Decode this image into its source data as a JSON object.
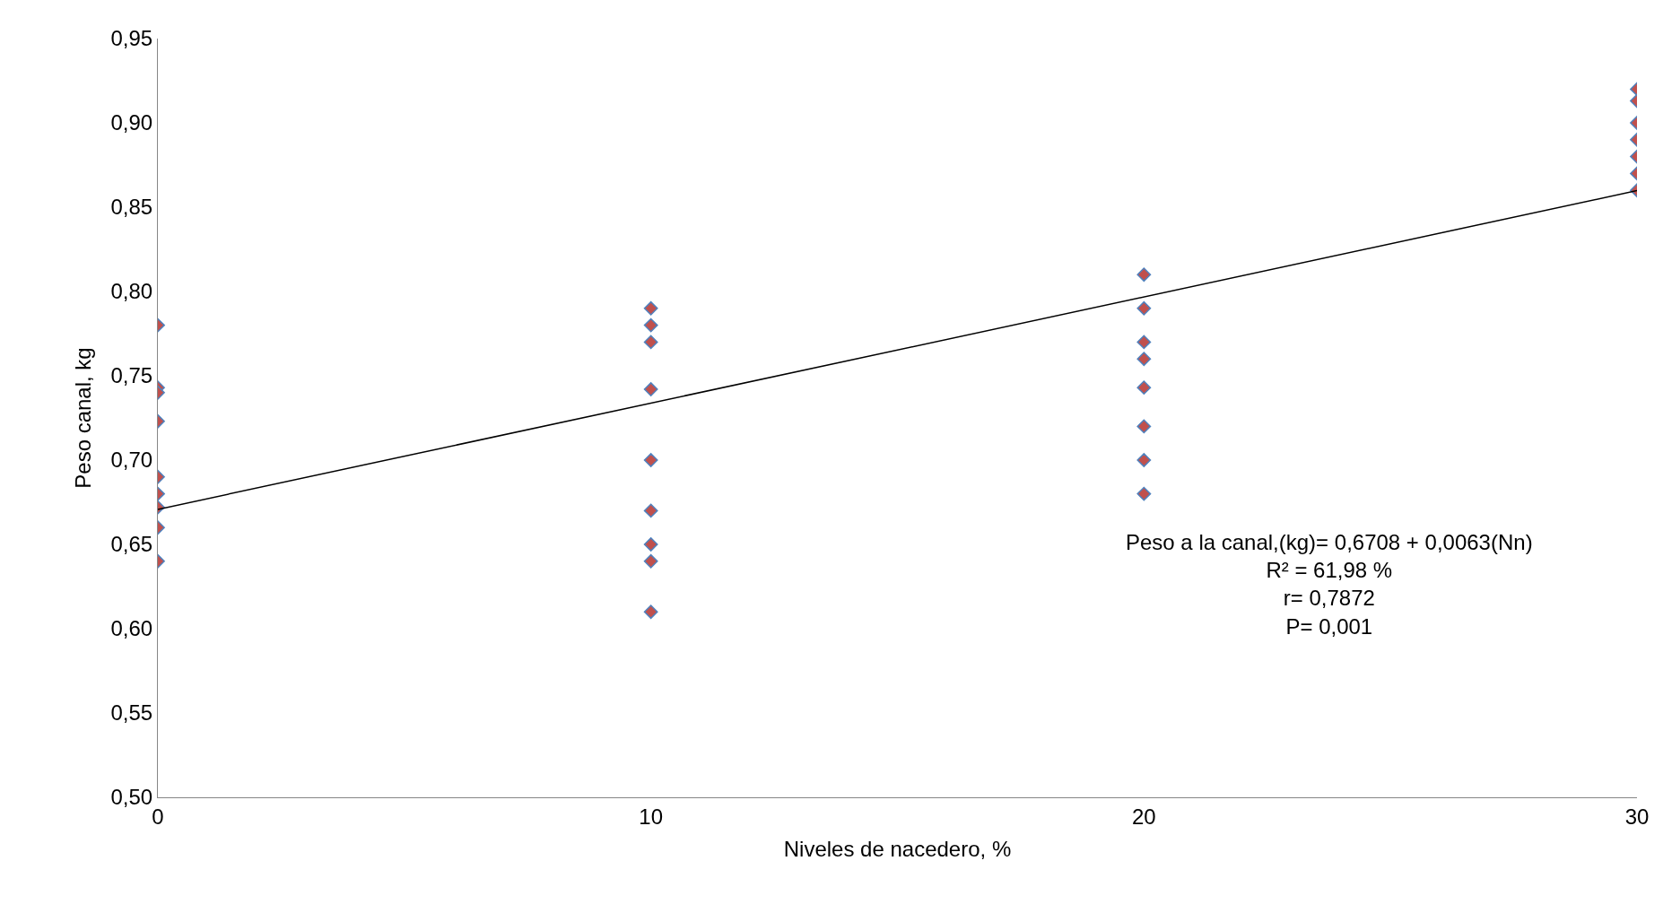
{
  "chart_data": {
    "type": "scatter",
    "xlabel": "Niveles de nacedero, %",
    "ylabel": "Peso canal, kg",
    "xlim": [
      0,
      30
    ],
    "xticks": [
      0,
      10,
      20,
      30
    ],
    "ylim": [
      0.5,
      0.95
    ],
    "yticks": [
      {
        "value": 0.5,
        "label": "0,50"
      },
      {
        "value": 0.55,
        "label": "0,55"
      },
      {
        "value": 0.6,
        "label": "0,60"
      },
      {
        "value": 0.65,
        "label": "0,65"
      },
      {
        "value": 0.7,
        "label": "0,70"
      },
      {
        "value": 0.75,
        "label": "0,75"
      },
      {
        "value": 0.8,
        "label": "0,80"
      },
      {
        "value": 0.85,
        "label": "0,85"
      },
      {
        "value": 0.9,
        "label": "0,90"
      },
      {
        "value": 0.95,
        "label": "0,95"
      }
    ],
    "legend": false,
    "marker": "diamond",
    "series": [
      {
        "color": "#c0504d",
        "x": [
          0,
          0,
          0,
          0,
          0,
          0,
          0,
          0,
          0,
          10,
          10,
          10,
          10,
          10,
          10,
          10,
          10,
          10,
          20,
          20,
          20,
          20,
          20,
          20,
          20,
          20,
          30,
          30,
          30,
          30,
          30,
          30,
          30
        ],
        "values": [
          0.78,
          0.743,
          0.74,
          0.723,
          0.69,
          0.68,
          0.672,
          0.66,
          0.64,
          0.79,
          0.78,
          0.77,
          0.742,
          0.7,
          0.67,
          0.65,
          0.64,
          0.61,
          0.81,
          0.79,
          0.77,
          0.76,
          0.743,
          0.72,
          0.7,
          0.68,
          0.92,
          0.913,
          0.9,
          0.89,
          0.88,
          0.87,
          0.86
        ]
      },
      {
        "type": "line",
        "marker": "none",
        "color": "#000000",
        "x": [
          0,
          30
        ],
        "values": [
          0.6708,
          0.8598
        ]
      }
    ],
    "annotations": [
      "Peso a la canal,(kg)= 0,6708 + 0,0063(Nn)\nR² = 61,98 %\nr= 0,7872\nP= 0,001"
    ]
  }
}
